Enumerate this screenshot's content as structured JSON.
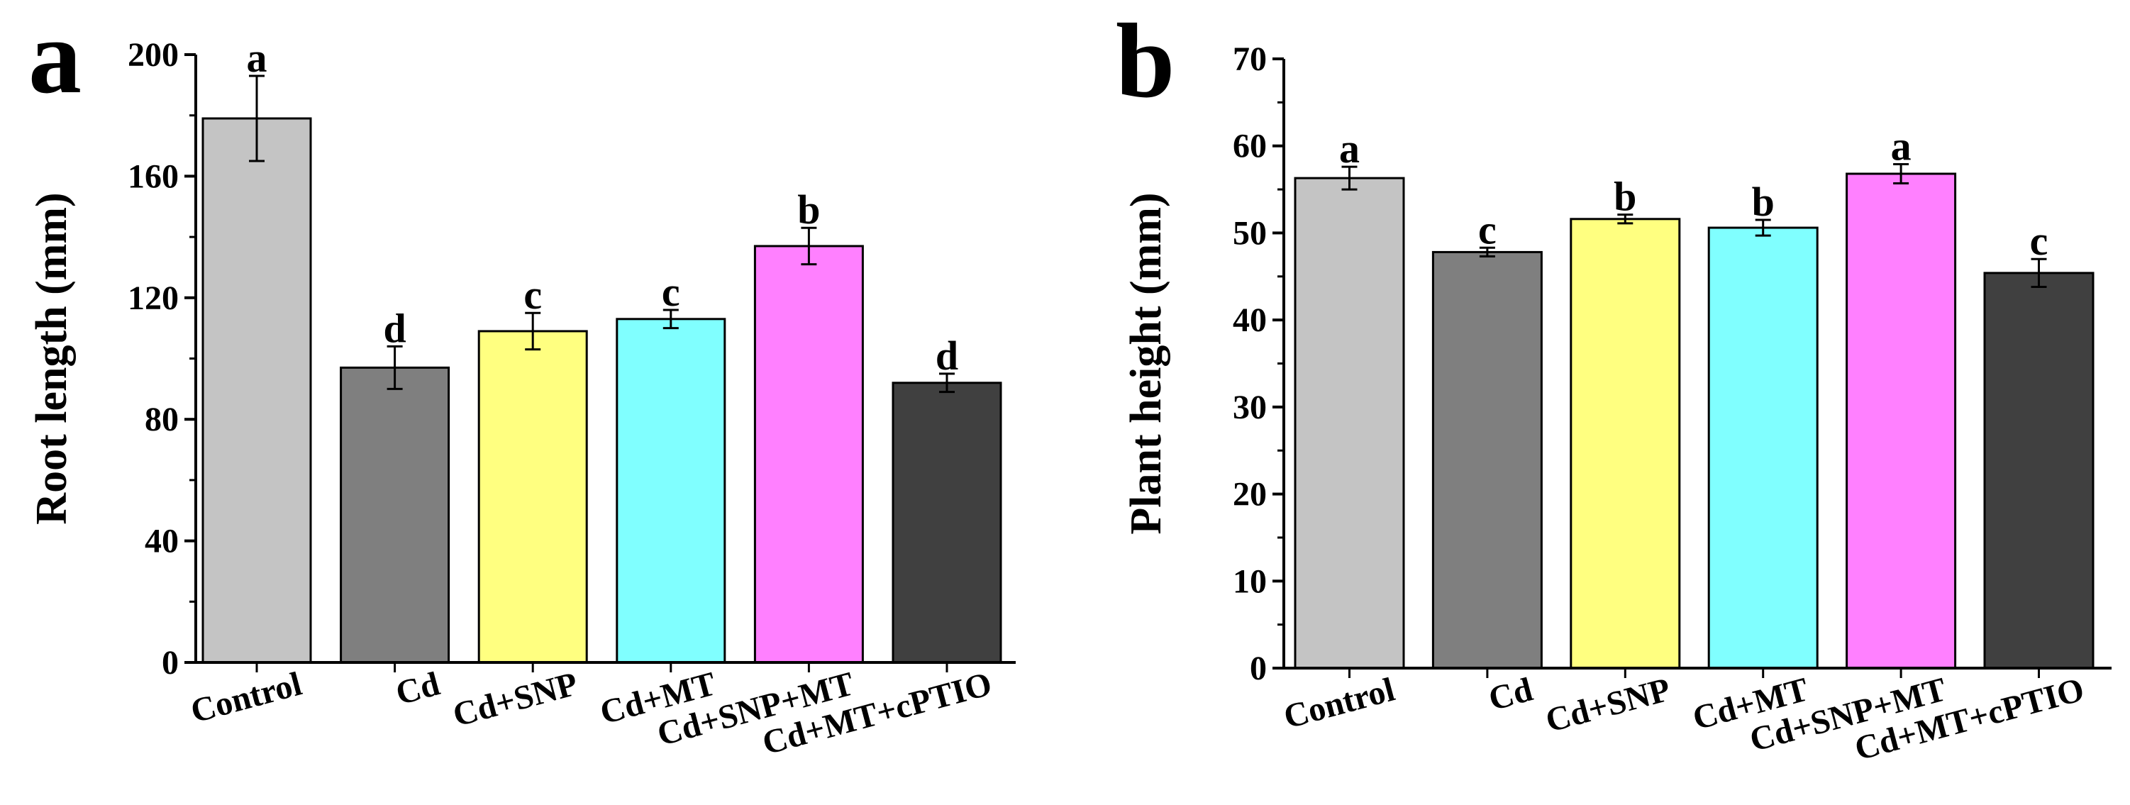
{
  "chart_data": [
    {
      "panel_label": "a",
      "type": "bar",
      "title": "",
      "xlabel": "",
      "ylabel": "Root length (mm)",
      "ylim": [
        0,
        200
      ],
      "yticks": [
        0,
        40,
        80,
        120,
        160,
        200
      ],
      "categories": [
        "Control",
        "Cd",
        "Cd+SNP",
        "Cd+MT",
        "Cd+SNP+MT",
        "Cd+MT+cPTIO"
      ],
      "values": [
        179,
        97,
        109,
        113,
        137,
        92
      ],
      "errors": [
        14,
        7,
        6,
        3,
        6,
        3
      ],
      "letters": [
        "a",
        "d",
        "c",
        "c",
        "b",
        "d"
      ],
      "colors": [
        "#c4c4c4",
        "#7f7f7f",
        "#ffff80",
        "#80ffff",
        "#ff80ff",
        "#404040"
      ]
    },
    {
      "panel_label": "b",
      "type": "bar",
      "title": "",
      "xlabel": "",
      "ylabel": "Plant height (mm)",
      "ylim": [
        0,
        70
      ],
      "yticks": [
        0,
        10,
        20,
        30,
        40,
        50,
        60,
        70
      ],
      "categories": [
        "Control",
        "Cd",
        "Cd+SNP",
        "Cd+MT",
        "Cd+SNP+MT",
        "Cd+MT+cPTIO"
      ],
      "values": [
        56.3,
        47.8,
        51.6,
        50.6,
        56.8,
        45.4
      ],
      "errors": [
        1.3,
        0.5,
        0.5,
        0.9,
        1.1,
        1.6
      ],
      "letters": [
        "a",
        "c",
        "b",
        "b",
        "a",
        "c"
      ],
      "colors": [
        "#c4c4c4",
        "#7f7f7f",
        "#ffff80",
        "#80ffff",
        "#ff80ff",
        "#404040"
      ]
    }
  ]
}
